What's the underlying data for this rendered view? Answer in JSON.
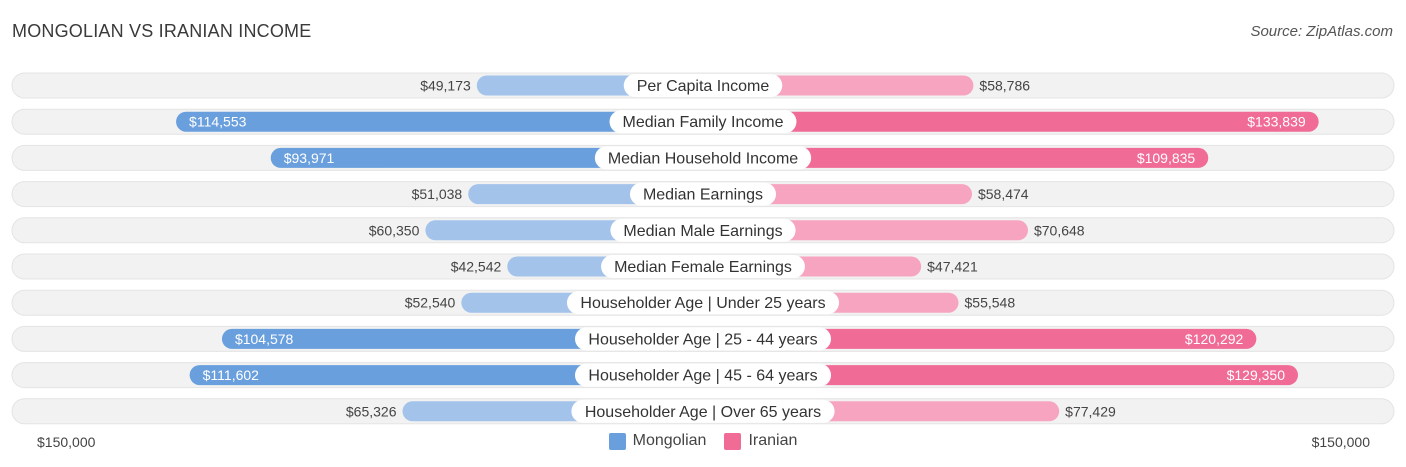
{
  "header": {
    "title": "MONGOLIAN VS IRANIAN INCOME",
    "source": "Source: ZipAtlas.com"
  },
  "colors": {
    "mongolian_dark": "#6a9fdd",
    "mongolian_light": "#a3c3ea",
    "iranian_dark": "#f06b96",
    "iranian_light": "#f6a4bf",
    "row_bg": "#f1f1f1"
  },
  "chart_data": {
    "type": "bar",
    "orientation": "horizontal-diverging",
    "max": 150000,
    "axis": {
      "left_label": "$150,000",
      "right_label": "$150,000"
    },
    "legend": [
      {
        "name": "Mongolian",
        "color": "#6a9fdd"
      },
      {
        "name": "Iranian",
        "color": "#f06b96"
      }
    ],
    "categories": [
      "Per Capita Income",
      "Median Family Income",
      "Median Household Income",
      "Median Earnings",
      "Median Male Earnings",
      "Median Female Earnings",
      "Householder Age | Under 25 years",
      "Householder Age | 25 - 44 years",
      "Householder Age | 45 - 64 years",
      "Householder Age | Over 65 years"
    ],
    "series": [
      {
        "name": "Mongolian",
        "values": [
          49173,
          114553,
          93971,
          51038,
          60350,
          42542,
          52540,
          104578,
          111602,
          65326
        ],
        "labels": [
          "$49,173",
          "$114,553",
          "$93,971",
          "$51,038",
          "$60,350",
          "$42,542",
          "$52,540",
          "$104,578",
          "$111,602",
          "$65,326"
        ]
      },
      {
        "name": "Iranian",
        "values": [
          58786,
          133839,
          109835,
          58474,
          70648,
          47421,
          55548,
          120292,
          129350,
          77429
        ],
        "labels": [
          "$58,786",
          "$133,839",
          "$109,835",
          "$58,474",
          "$70,648",
          "$47,421",
          "$55,548",
          "$120,292",
          "$129,350",
          "$77,429"
        ]
      }
    ]
  }
}
